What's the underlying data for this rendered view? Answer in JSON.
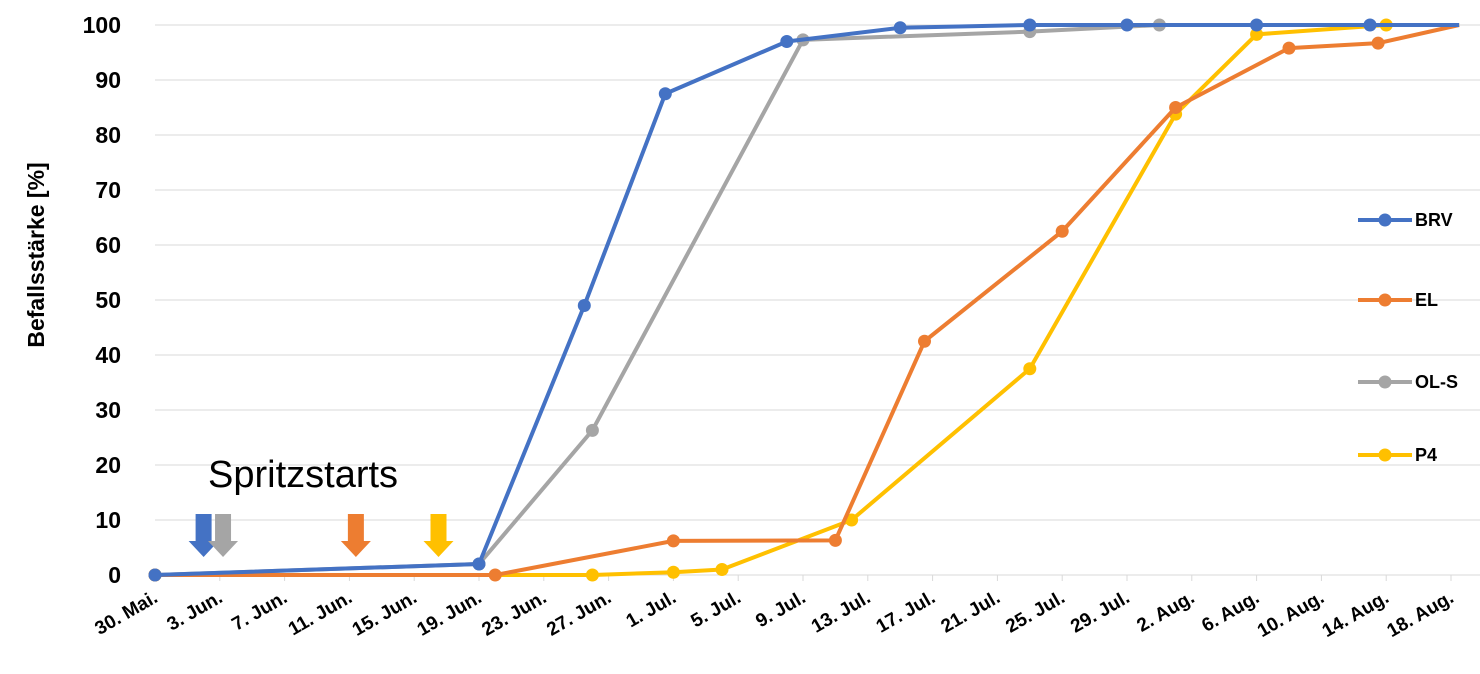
{
  "chart_data": {
    "type": "line",
    "ylabel": "Befallsstärke [%]",
    "xlabel": "",
    "ylim": [
      0,
      100
    ],
    "y_ticks": [
      0,
      10,
      20,
      30,
      40,
      50,
      60,
      70,
      80,
      90,
      100
    ],
    "x_ticks": [
      "30. Mai.",
      "3. Jun.",
      "7. Jun.",
      "11. Jun.",
      "15. Jun.",
      "19. Jun.",
      "23. Jun.",
      "27. Jun.",
      "1. Jul.",
      "5. Jul.",
      "9. Jul.",
      "13. Jul.",
      "17. Jul.",
      "21. Jul.",
      "25. Jul.",
      "29. Jul.",
      "2. Aug.",
      "6. Aug.",
      "10. Aug.",
      "14. Aug.",
      "18. Aug."
    ],
    "x_range_days": [
      0,
      80.5
    ],
    "grid": "horizontal",
    "legend_position": "right",
    "series": [
      {
        "name": "BRV",
        "color": "#4472C4",
        "points": [
          {
            "day": 0,
            "y": 0
          },
          {
            "day": 20,
            "y": 2
          },
          {
            "day": 26.5,
            "y": 49
          },
          {
            "day": 31.5,
            "y": 87.5
          },
          {
            "day": 39,
            "y": 97
          },
          {
            "day": 46,
            "y": 99.5
          },
          {
            "day": 54,
            "y": 100
          },
          {
            "day": 60,
            "y": 100
          },
          {
            "day": 68,
            "y": 100
          },
          {
            "day": 75,
            "y": 100
          },
          {
            "day": 80.5,
            "y": 100
          }
        ]
      },
      {
        "name": "EL",
        "color": "#ED7D31",
        "points": [
          {
            "day": 0,
            "y": 0
          },
          {
            "day": 21,
            "y": 0
          },
          {
            "day": 32,
            "y": 6.2
          },
          {
            "day": 42,
            "y": 6.3
          },
          {
            "day": 47.5,
            "y": 42.5
          },
          {
            "day": 56,
            "y": 62.5
          },
          {
            "day": 63,
            "y": 85
          },
          {
            "day": 70,
            "y": 95.8
          },
          {
            "day": 75.5,
            "y": 96.7
          },
          {
            "day": 80.5,
            "y": 100
          }
        ]
      },
      {
        "name": "OL-S",
        "color": "#A5A5A5",
        "points": [
          {
            "day": 0,
            "y": 0
          },
          {
            "day": 20,
            "y": 2
          },
          {
            "day": 27,
            "y": 26.3
          },
          {
            "day": 40,
            "y": 97.3
          },
          {
            "day": 54,
            "y": 98.8
          },
          {
            "day": 62,
            "y": 100
          },
          {
            "day": 80.5,
            "y": 100
          }
        ]
      },
      {
        "name": "P4",
        "color": "#FFC000",
        "points": [
          {
            "day": 0,
            "y": 0
          },
          {
            "day": 27,
            "y": 0
          },
          {
            "day": 32,
            "y": 0.5
          },
          {
            "day": 35,
            "y": 1
          },
          {
            "day": 43,
            "y": 10
          },
          {
            "day": 54,
            "y": 37.5
          },
          {
            "day": 63,
            "y": 83.8
          },
          {
            "day": 68,
            "y": 98.3
          },
          {
            "day": 76,
            "y": 100
          },
          {
            "day": 80.5,
            "y": 100
          }
        ]
      }
    ],
    "annotations": [
      {
        "text": "Spritzstarts"
      }
    ],
    "spray_start_arrows": [
      {
        "series": "BRV",
        "day": 3,
        "color": "#4472C4"
      },
      {
        "series": "OL-S",
        "day": 4.2,
        "color": "#A5A5A5"
      },
      {
        "series": "EL",
        "day": 12.4,
        "color": "#ED7D31"
      },
      {
        "series": "P4",
        "day": 17.5,
        "color": "#FFC000"
      }
    ]
  }
}
